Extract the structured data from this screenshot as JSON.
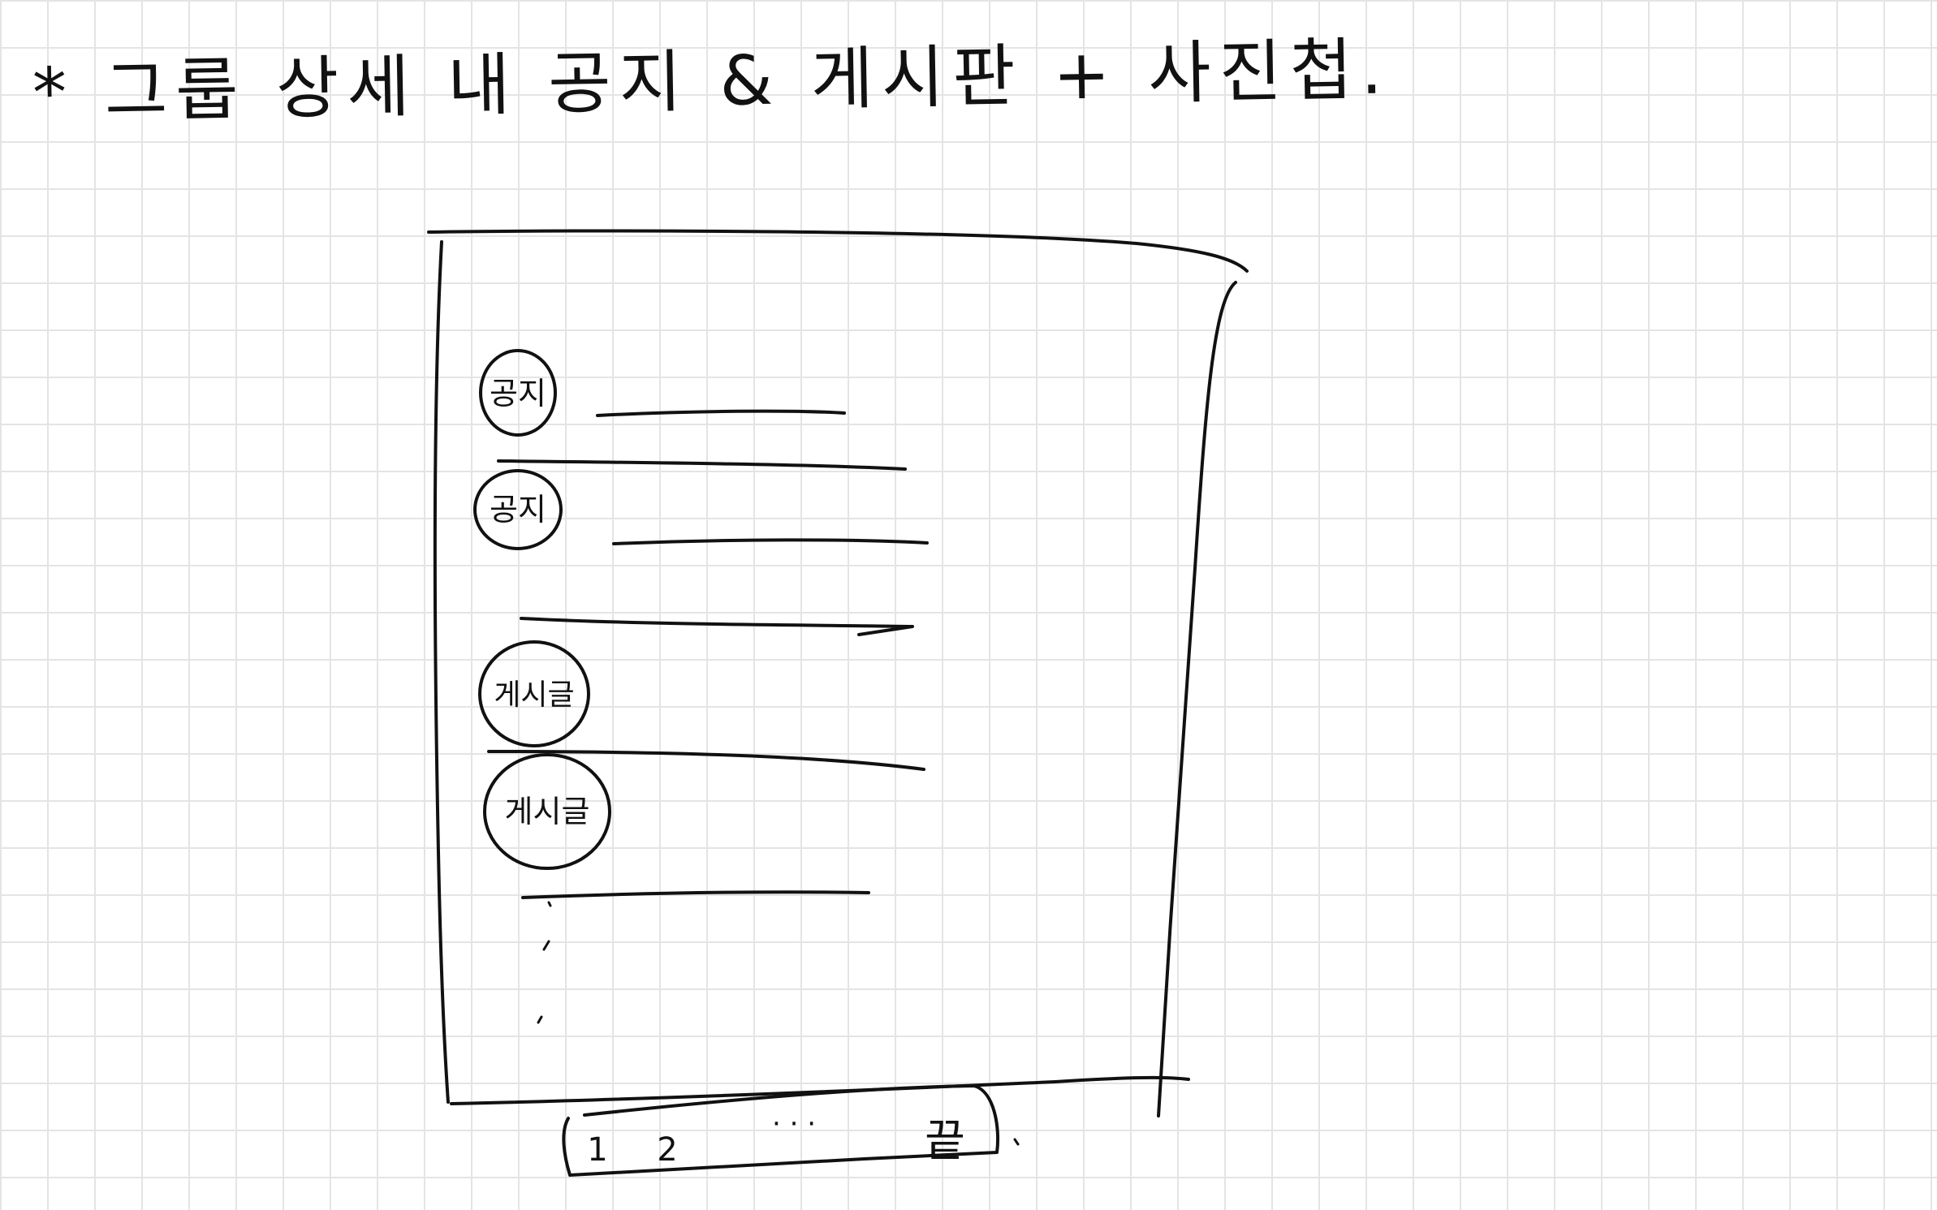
{
  "title": "* 그룹 상세 내 공지 & 게시판 + 사진첩.",
  "items": [
    {
      "badge": "공지"
    },
    {
      "badge": "공지"
    },
    {
      "badge": "게시글"
    },
    {
      "badge": "게시글"
    }
  ],
  "pagination": {
    "page1": "1",
    "page2": "2",
    "ellipsis": "· · ·",
    "last": "끝"
  },
  "colors": {
    "ink": "#111111",
    "grid": "#e4e4e4",
    "paper": "#ffffff"
  }
}
